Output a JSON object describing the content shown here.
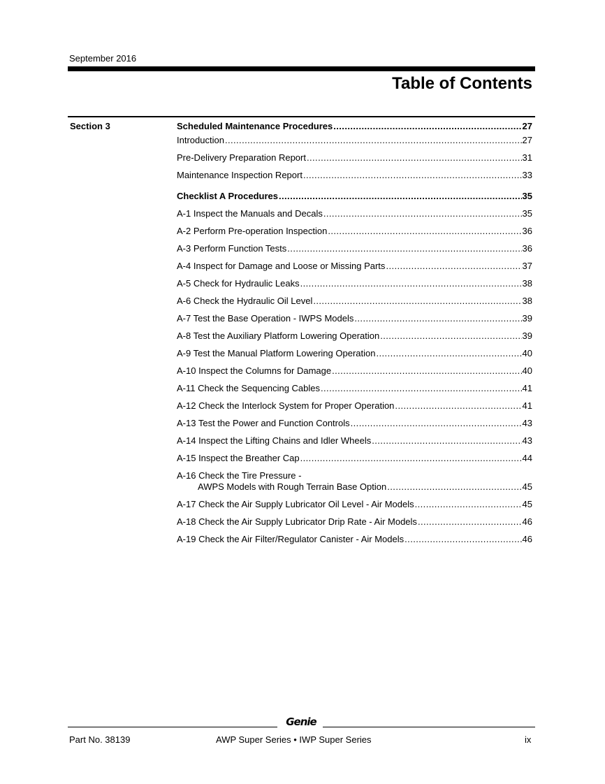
{
  "header": {
    "date": "September 2016",
    "title": "Table of Contents"
  },
  "section_label": "Section 3",
  "entries": [
    {
      "text": "Scheduled Maintenance Procedures",
      "page": "27",
      "bold": true
    },
    {
      "text": "Introduction",
      "page": "27"
    },
    {
      "text": "Pre-Delivery Preparation Report",
      "page": "31"
    },
    {
      "text": "Maintenance Inspection Report",
      "page": "33"
    },
    {
      "text": "Checklist A Procedures",
      "page": "35",
      "bold": true
    },
    {
      "text": "A-1 Inspect the Manuals and Decals",
      "page": "35"
    },
    {
      "text": "A-2 Perform Pre-operation Inspection",
      "page": "36"
    },
    {
      "text": "A-3 Perform Function Tests",
      "page": "36"
    },
    {
      "text": "A-4 Inspect for Damage and Loose or Missing Parts",
      "page": "37"
    },
    {
      "text": "A-5 Check for Hydraulic Leaks",
      "page": "38"
    },
    {
      "text": "A-6 Check the Hydraulic Oil Level",
      "page": "38"
    },
    {
      "text": "A-7 Test the Base Operation - IWPS Models",
      "page": "39"
    },
    {
      "text": "A-8 Test the Auxiliary Platform Lowering Operation",
      "page": "39"
    },
    {
      "text": "A-9 Test the Manual Platform Lowering Operation",
      "page": "40"
    },
    {
      "text": "A-10 Inspect the Columns for Damage",
      "page": "40"
    },
    {
      "text": "A-11 Check the Sequencing Cables",
      "page": "41"
    },
    {
      "text": "A-12 Check the Interlock System for Proper Operation",
      "page": "41"
    },
    {
      "text": "A-13 Test the Power and Function Controls",
      "page": "43"
    },
    {
      "text": "A-14 Inspect the Lifting Chains and Idler Wheels",
      "page": "43"
    },
    {
      "text": "A-15 Inspect the Breather Cap",
      "page": "44"
    },
    {
      "text": "A-16 Check the Tire Pressure -",
      "text2": "AWPS Models with Rough Terrain Base Option",
      "page": "45"
    },
    {
      "text": "A-17 Check the Air Supply Lubricator Oil Level - Air Models",
      "page": "45"
    },
    {
      "text": "A-18 Check the Air Supply Lubricator Drip Rate - Air Models",
      "page": "46"
    },
    {
      "text": "A-19 Check the Air Filter/Regulator Canister - Air Models",
      "page": "46"
    }
  ],
  "footer": {
    "logo": "Genie",
    "part_no": "Part No.  38139",
    "series": "AWP Super Series • IWP Super Series",
    "page_number": "ix"
  }
}
